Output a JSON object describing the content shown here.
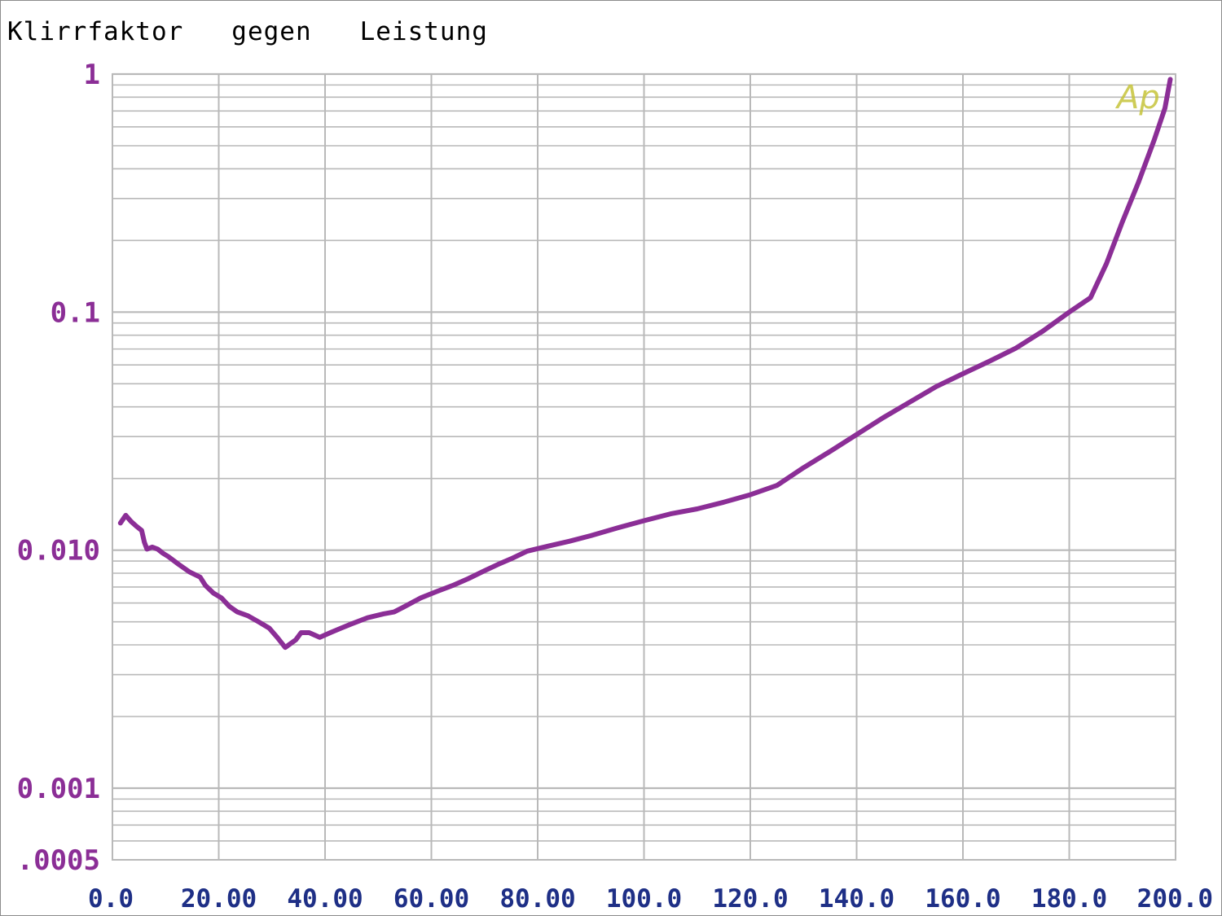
{
  "title": "Klirrfaktor   gegen   Leistung",
  "watermark": "Ap",
  "colors": {
    "series": "#8b2e96",
    "y_ticks": "#8b2e96",
    "x_ticks": "#1e2f86",
    "grid": "#b9b9b9",
    "watermark": "#c6c43a"
  },
  "chart_data": {
    "type": "line",
    "title": "Klirrfaktor   gegen   Leistung",
    "xlabel": "",
    "ylabel": "",
    "x_scale": "linear",
    "y_scale": "log",
    "xlim": [
      0,
      200
    ],
    "ylim": [
      0.0005,
      1
    ],
    "grid": true,
    "x_tick_values": [
      0,
      20,
      40,
      60,
      80,
      100,
      120,
      140,
      160,
      180,
      200
    ],
    "x_tick_labels": [
      "0.0",
      "20.00",
      "40.00",
      "60.00",
      "80.00",
      "100.0",
      "120.0",
      "140.0",
      "160.0",
      "180.0",
      "200.0"
    ],
    "y_tick_values": [
      1,
      0.1,
      0.01,
      0.001,
      0.0005
    ],
    "y_tick_labels": [
      "1",
      "0.1",
      "0.010",
      "0.001",
      ".0005"
    ],
    "series": [
      {
        "x": [
          1.5,
          2.5,
          3.5,
          4.5,
          5.5,
          6.0,
          6.5,
          7.5,
          8.5,
          9.5,
          10.5,
          12.5,
          14.5,
          16.5,
          17.5,
          19.0,
          20.5,
          22.0,
          23.5,
          25.5,
          27.5,
          29.5,
          31.0,
          32.5,
          34.5,
          35.5,
          37.0,
          39.0,
          41.0,
          43.0,
          45.0,
          48.0,
          51.0,
          53.0,
          55.0,
          58.0,
          61.0,
          64.0,
          67.0,
          70.0,
          72.5,
          75.0,
          78.0,
          82.0,
          86.0,
          90.0,
          95.0,
          100.0,
          105.0,
          110.0,
          115.0,
          120.0,
          125.0,
          130.0,
          135.0,
          140.0,
          145.0,
          150.0,
          155.0,
          160.0,
          165.0,
          170.0,
          175.0,
          180.0,
          184.0,
          187.0,
          190.0,
          193.0,
          196.0,
          198.0,
          199.0
        ],
        "y": [
          0.013,
          0.014,
          0.0132,
          0.0126,
          0.0121,
          0.0108,
          0.0101,
          0.0103,
          0.0101,
          0.0097,
          0.0094,
          0.0087,
          0.0081,
          0.0077,
          0.0071,
          0.0066,
          0.0063,
          0.0058,
          0.0055,
          0.0053,
          0.005,
          0.0047,
          0.0043,
          0.0039,
          0.0042,
          0.0045,
          0.0045,
          0.0043,
          0.0045,
          0.0047,
          0.0049,
          0.0052,
          0.0054,
          0.0055,
          0.0058,
          0.0063,
          0.0067,
          0.0071,
          0.0076,
          0.0082,
          0.0087,
          0.0092,
          0.0099,
          0.0104,
          0.0109,
          0.0115,
          0.0124,
          0.0133,
          0.0142,
          0.0149,
          0.0159,
          0.0171,
          0.0187,
          0.0222,
          0.026,
          0.0306,
          0.036,
          0.0419,
          0.0487,
          0.0551,
          0.0622,
          0.0707,
          0.0831,
          0.1,
          0.115,
          0.16,
          0.24,
          0.35,
          0.53,
          0.72,
          0.95
        ]
      }
    ]
  }
}
